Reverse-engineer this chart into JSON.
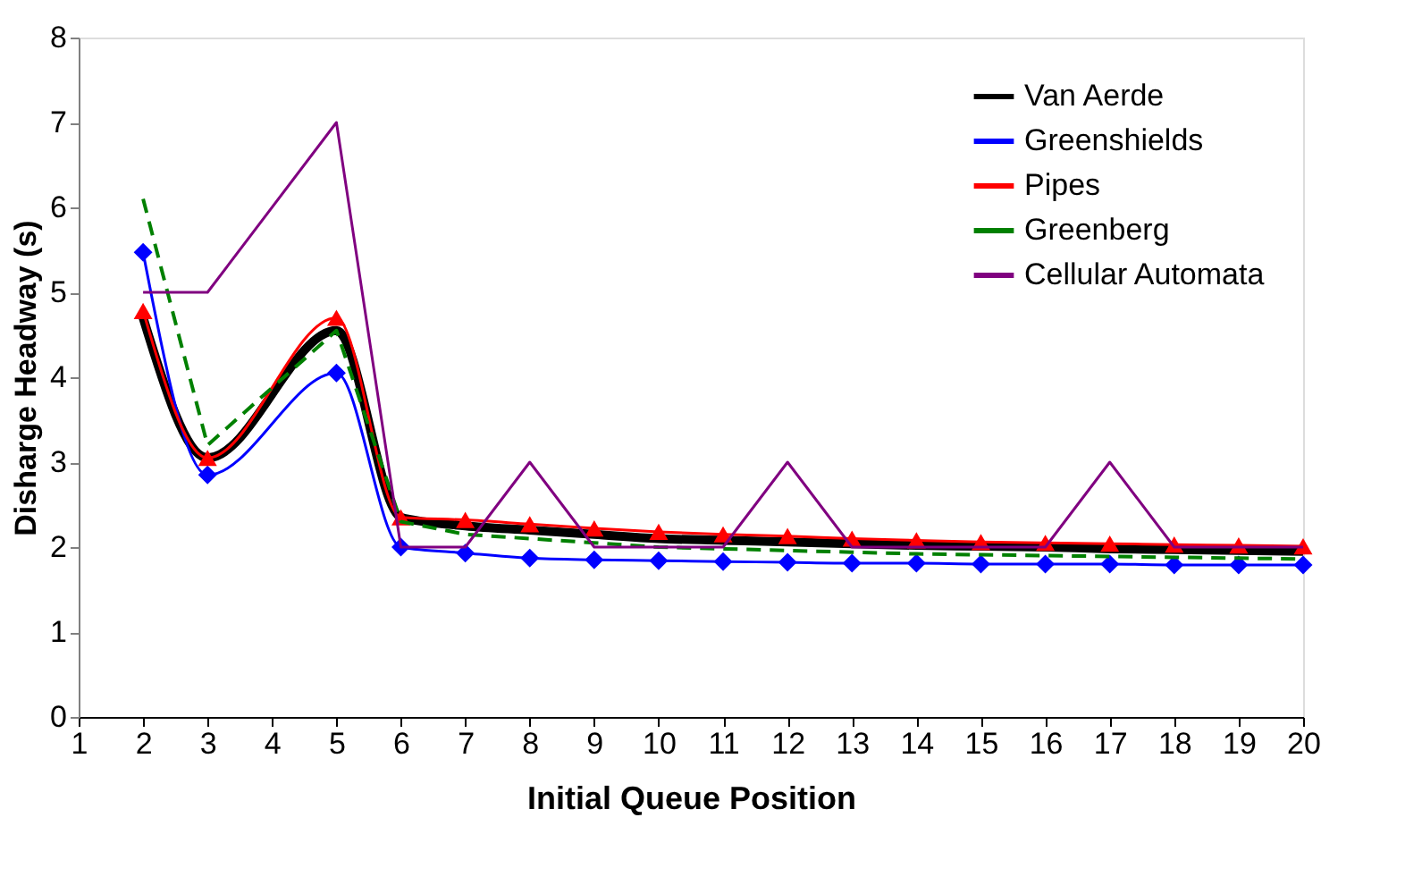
{
  "chart_data": {
    "type": "line",
    "xlabel": "Initial Queue Position",
    "ylabel": "Disharge Headway (s)",
    "x": [
      2,
      3,
      5,
      6,
      7,
      8,
      9,
      10,
      11,
      12,
      13,
      14,
      15,
      16,
      17,
      18,
      19,
      20
    ],
    "xlim": [
      1,
      20
    ],
    "xticks": [
      1,
      2,
      3,
      4,
      5,
      6,
      7,
      8,
      9,
      10,
      11,
      12,
      13,
      14,
      15,
      16,
      17,
      18,
      19,
      20
    ],
    "ylim": [
      0,
      8
    ],
    "yticks": [
      0,
      1,
      2,
      3,
      4,
      5,
      6,
      7,
      8
    ],
    "grid": false,
    "legend": "top right",
    "series": [
      {
        "name": "Van Aerde",
        "color": "#000000",
        "marker": "none",
        "line_style": "solid",
        "values": [
          4.7,
          3.05,
          4.55,
          2.35,
          2.25,
          2.2,
          2.15,
          2.1,
          2.08,
          2.06,
          2.04,
          2.02,
          2.01,
          2.0,
          1.98,
          1.97,
          1.96,
          1.95
        ]
      },
      {
        "name": "Greenshields",
        "color": "#0000ff",
        "marker": "diamond",
        "line_style": "solid",
        "values": [
          5.47,
          2.85,
          4.05,
          2.0,
          1.93,
          1.87,
          1.85,
          1.84,
          1.83,
          1.82,
          1.81,
          1.81,
          1.8,
          1.8,
          1.8,
          1.79,
          1.79,
          1.79
        ]
      },
      {
        "name": "Pipes",
        "color": "#ff0000",
        "marker": "triangle",
        "line_style": "solid",
        "values": [
          4.78,
          3.05,
          4.7,
          2.35,
          2.32,
          2.27,
          2.22,
          2.18,
          2.15,
          2.13,
          2.1,
          2.08,
          2.06,
          2.05,
          2.04,
          2.03,
          2.02,
          2.01
        ]
      },
      {
        "name": "Greenberg",
        "color": "#008000",
        "marker": "none",
        "line_style": "dashed",
        "values": [
          6.1,
          3.2,
          4.55,
          2.3,
          2.15,
          2.1,
          2.05,
          2.0,
          1.98,
          1.96,
          1.94,
          1.92,
          1.91,
          1.9,
          1.89,
          1.88,
          1.87,
          1.86
        ]
      },
      {
        "name": "Cellular Automata",
        "color": "#800080",
        "marker": "none",
        "line_style": "solid",
        "values": [
          5,
          5,
          7,
          2,
          2,
          3,
          2,
          2,
          2,
          3,
          2,
          2,
          2,
          2,
          3,
          2,
          2,
          2
        ]
      }
    ]
  }
}
